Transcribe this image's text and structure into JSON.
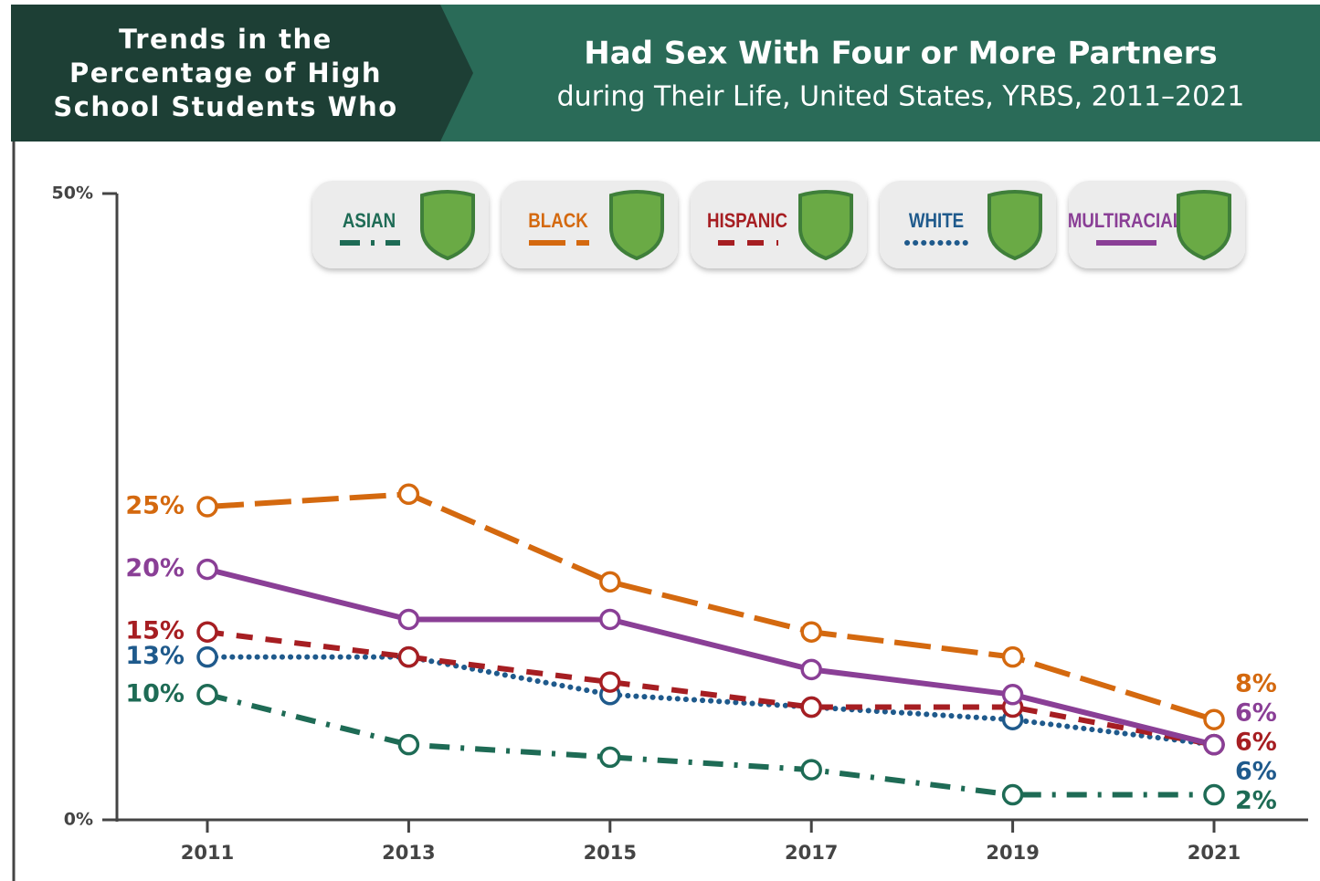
{
  "chart_data": {
    "type": "line",
    "header": [
      "Trends in the",
      "Percentage of High",
      "School Students Who"
    ],
    "title": "Had Sex With Four or More Partners",
    "subtitle": "during Their Life, United States, YRBS, 2011–2021",
    "categories": [
      "2011",
      "2013",
      "2015",
      "2017",
      "2019",
      "2021"
    ],
    "ylim": [
      0,
      50
    ],
    "yticks": [
      {
        "value": 0,
        "label": "0%"
      },
      {
        "value": 50,
        "label": "50%"
      }
    ],
    "series": [
      {
        "name": "ASIAN",
        "color": "#1e6b55",
        "style": "dash-dot",
        "values": [
          10,
          6,
          5,
          4,
          2,
          2
        ],
        "value_labels": [
          "10%",
          null,
          null,
          null,
          null,
          "2%"
        ]
      },
      {
        "name": "BLACK",
        "color": "#d4690f",
        "style": "long-dash",
        "values": [
          25,
          26,
          19,
          15,
          13,
          8
        ],
        "value_labels": [
          "25%",
          null,
          null,
          null,
          null,
          "8%"
        ]
      },
      {
        "name": "HISPANIC",
        "color": "#a61e22",
        "style": "dash",
        "values": [
          15,
          13,
          11,
          9,
          9,
          6
        ],
        "value_labels": [
          "15%",
          null,
          null,
          null,
          null,
          "6%"
        ]
      },
      {
        "name": "WHITE",
        "color": "#1f5a8c",
        "style": "dot",
        "values": [
          13,
          13,
          10,
          9,
          8,
          6
        ],
        "value_labels": [
          "13%",
          null,
          null,
          null,
          null,
          "6%"
        ]
      },
      {
        "name": "MULTIRACIAL",
        "color": "#8a3f96",
        "style": "solid",
        "values": [
          20,
          16,
          16,
          12,
          10,
          6
        ],
        "value_labels": [
          "20%",
          null,
          null,
          null,
          null,
          "6%"
        ]
      }
    ]
  }
}
